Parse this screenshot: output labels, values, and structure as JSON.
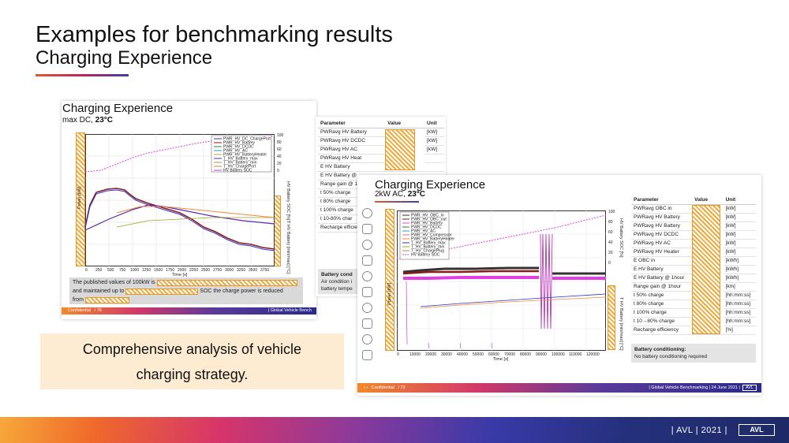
{
  "slide": {
    "title": "Examples for benchmarking results",
    "subtitle": "Charging Experience",
    "callout": "Comprehensive analysis of vehicle charging strategy.",
    "footer": "| AVL | 2021 |",
    "logo": "AVL"
  },
  "left_card": {
    "title": "Charging Experience",
    "sub_prefix": "max DC, ",
    "sub_bold": "23°C",
    "note_line1": "The published values of 100kW is",
    "note_line2": "and maintained up to",
    "note_line2b": "SOC the charge power is reduced",
    "note_line3": "from",
    "footer_left": "Confidential",
    "footer_page": "/ 76",
    "footer_right": "| Global Vehicle Bench",
    "legend": [
      "PWR_HV_DC_ChargePort",
      "PWR_HV_Battery",
      "PWR_HV_DCDC",
      "PWR_HV_AC",
      "PWR_HV_BatteryHeater",
      "T_HV_Battery_max",
      "T_HV_Battery_min",
      "T_HV_ChargePort",
      "HV Battery SOC"
    ],
    "ylabel_left": "Power [kW]",
    "ylabel_right1": "HV Battery SOC [%]",
    "ylabel_right2": "T HV Battery [min/max] [°C]",
    "xlabel": "Time [s]",
    "xticks": [
      "0",
      "250",
      "500",
      "750",
      "1000",
      "1250",
      "1500",
      "1750",
      "2000",
      "2250",
      "2500",
      "2750",
      "3000",
      "3250",
      "3500",
      "3750"
    ],
    "soc_ticks": [
      "100",
      "80",
      "60",
      "40",
      "20",
      "0"
    ]
  },
  "right_card": {
    "headers": [
      "Parameter",
      "Value",
      "Unit"
    ],
    "rows": [
      [
        "PWRavg HV Battery",
        "[kW]"
      ],
      [
        "PWRavg HV DCDC",
        "[kW]"
      ],
      [
        "PWRavg HV AC",
        "[kW]"
      ],
      [
        "PWRavg HV Heat",
        ""
      ],
      [
        "E HV Battery",
        ""
      ],
      [
        "E HV Battery @",
        ""
      ],
      [
        "Range gain @ 1",
        ""
      ],
      [
        "t 50% charge",
        ""
      ],
      [
        "t 80% charge",
        ""
      ],
      [
        "t 100% charge",
        ""
      ],
      [
        "t 10-80% char",
        ""
      ],
      [
        "Recharge efficie",
        ""
      ]
    ],
    "batt_title": "Battery cond",
    "batt_l1": "Air condition i",
    "batt_l2": "battery tempe"
  },
  "front_card": {
    "title": "Charging Experience",
    "sub_prefix": "2kW AC, ",
    "sub_bold": "23°C",
    "legend": [
      "PWR_HV_OBC_in",
      "PWR_HV_OBC_out",
      "PWR_HV_Battery",
      "PWR_HV_DCDC",
      "PWR_HV_AC",
      "PWR_HV_Compressor",
      "PWR_HV_BatteryHeater",
      "T_HV_Battery_max",
      "T_HV_Battery_min",
      "T_HV_ChargePlug",
      "HV Battery SOC"
    ],
    "ylabel_left": "Power [kW]",
    "ylabel_right1": "HV Battery SOC [%]",
    "ylabel_right2": "T HV Battery [min/max] [°C]",
    "xlabel": "Time [s]",
    "xticks": [
      "0",
      "10000",
      "20000",
      "30000",
      "40000",
      "50000",
      "60000",
      "70000",
      "80000",
      "90000",
      "100000",
      "110000",
      "120000"
    ],
    "soc_ticks": [
      "100",
      "80",
      "60",
      "40",
      "20",
      "0"
    ],
    "headers": [
      "Parameter",
      "Value",
      "Unit"
    ],
    "rows": [
      [
        "PWRavg OBC in",
        "[kW]"
      ],
      [
        "PWRavg HV Battery",
        "[kW]"
      ],
      [
        "PWRavg HV Battery",
        "[kW]"
      ],
      [
        "PWRavg HV DCDC",
        "[kW]"
      ],
      [
        "PWRavg HV AC",
        "[kW]"
      ],
      [
        "PWRavg HV Heater",
        "[kW]"
      ],
      [
        "E OBC in",
        "[kWh]"
      ],
      [
        "E HV Battery",
        "[kWh]"
      ],
      [
        "E HV Battery @ 1hour",
        "[kWh]"
      ],
      [
        "Range gain @ 1hour",
        "[km]"
      ],
      [
        "t 50% charge",
        "[hh:mm:ss]"
      ],
      [
        "t 80% charge",
        "[hh:mm:ss]"
      ],
      [
        "t 100% charge",
        "[hh:mm:ss]"
      ],
      [
        "t 10→80% charge",
        "[hh:mm:ss]"
      ],
      [
        "Recharge efficiency",
        "[%]"
      ]
    ],
    "batt_title": "Battery conditioning:",
    "batt_text": "No battery conditioning required",
    "footer_left": "Confidential",
    "footer_page": "/ 72",
    "footer_right": "| Global Vehicle Benchmarking | 24 June 2021 |",
    "footer_logo": "AVL"
  }
}
